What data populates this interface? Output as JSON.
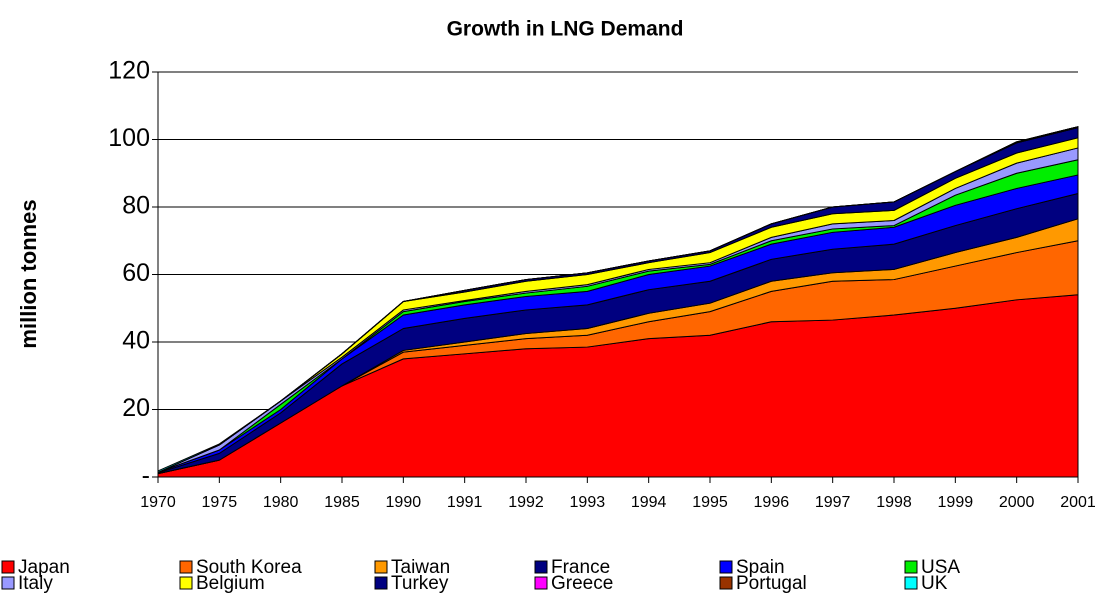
{
  "chart_data": {
    "type": "stacked_area",
    "title": "Growth in LNG Demand",
    "y_label": "million tonnes",
    "categories": [
      "1970",
      "1975",
      "1980",
      "1985",
      "1990",
      "1991",
      "1992",
      "1993",
      "1994",
      "1995",
      "1996",
      "1997",
      "1998",
      "1999",
      "2000",
      "2001"
    ],
    "series": [
      {
        "name": "Japan",
        "color": "#ff0000",
        "values": [
          1,
          5,
          16,
          27,
          35,
          36.5,
          38,
          38.5,
          41,
          42,
          46,
          46.5,
          48,
          50,
          52.5,
          54
        ]
      },
      {
        "name": "South Korea",
        "color": "#ff6600",
        "values": [
          0,
          0,
          0,
          0,
          2,
          2.5,
          3,
          3.5,
          5,
          7,
          9,
          11.5,
          10.5,
          12.5,
          14,
          16
        ]
      },
      {
        "name": "Taiwan",
        "color": "#ff9900",
        "values": [
          0,
          0,
          0,
          0,
          0.5,
          1,
          1.5,
          2,
          2.5,
          2.5,
          3,
          2.5,
          3,
          4,
          4.5,
          6.5
        ]
      },
      {
        "name": "France",
        "color": "#000080",
        "values": [
          0.2,
          2,
          3,
          6.5,
          6.5,
          7,
          7,
          7,
          7,
          6.5,
          6.5,
          7,
          7.5,
          8,
          8.5,
          7.5
        ]
      },
      {
        "name": "Spain",
        "color": "#0000ff",
        "values": [
          0.2,
          1,
          1,
          1.5,
          4,
          4,
          4,
          4,
          4.5,
          4.5,
          4.5,
          5,
          5,
          6,
          6,
          5.5
        ]
      },
      {
        "name": "USA",
        "color": "#00ee00",
        "values": [
          0,
          0,
          1.5,
          0,
          1,
          1,
          1,
          1.5,
          1,
          0.5,
          1,
          1,
          0.5,
          3,
          4.5,
          4.5
        ]
      },
      {
        "name": "Italy",
        "color": "#9999ff",
        "values": [
          0,
          1.5,
          1,
          0.5,
          0.5,
          0.3,
          0.5,
          0.5,
          0.5,
          0.5,
          1,
          1.5,
          1.5,
          2,
          3,
          3.5
        ]
      },
      {
        "name": "Belgium",
        "color": "#ffff00",
        "values": [
          0,
          0,
          0,
          1,
          2.5,
          2.5,
          3,
          3,
          2,
          3,
          3,
          3,
          3,
          3,
          3,
          3
        ]
      },
      {
        "name": "Turkey",
        "color": "#000080",
        "values": [
          0,
          0,
          0,
          0,
          0,
          0.5,
          0.5,
          0.5,
          0.5,
          0.5,
          1,
          2,
          2.5,
          2,
          3,
          3
        ]
      },
      {
        "name": "Greece",
        "color": "#ff00ff",
        "values": [
          0,
          0,
          0,
          0,
          0,
          0,
          0,
          0,
          0,
          0,
          0,
          0,
          0,
          0,
          0.3,
          0.3
        ]
      },
      {
        "name": "Portugal",
        "color": "#993300",
        "values": [
          0,
          0,
          0,
          0,
          0,
          0,
          0,
          0,
          0,
          0,
          0,
          0,
          0,
          0,
          0,
          0
        ]
      },
      {
        "name": "UK",
        "color": "#00ffff",
        "values": [
          0.4,
          0.3,
          0,
          0,
          0,
          0,
          0,
          0,
          0,
          0,
          0,
          0,
          0,
          0,
          0,
          0
        ]
      }
    ],
    "ylim": [
      0,
      120
    ],
    "yticks": [
      {
        "value": 0,
        "label": "-"
      },
      20,
      40,
      60,
      80,
      100,
      120
    ],
    "grid": true
  }
}
